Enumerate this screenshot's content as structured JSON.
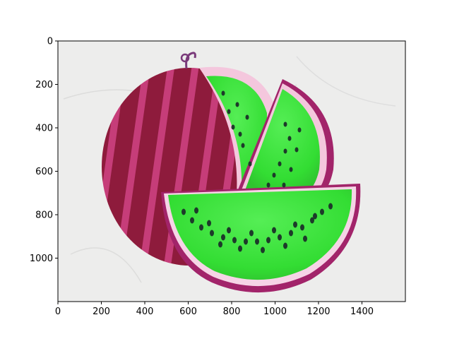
{
  "figure": {
    "image_description_icon": "watermelon-photo-icon",
    "axes": {
      "x_ticks": [
        "0",
        "200",
        "400",
        "600",
        "800",
        "1000",
        "1200",
        "1400"
      ],
      "y_ticks": [
        "0",
        "200",
        "400",
        "600",
        "800",
        "1000"
      ],
      "x_tick_values": [
        0,
        200,
        400,
        600,
        800,
        1000,
        1200,
        1400
      ],
      "y_tick_values": [
        0,
        200,
        400,
        600,
        800,
        1000
      ],
      "x_range": [
        0,
        1600
      ],
      "y_range": [
        1200,
        0
      ]
    },
    "colors": {
      "background": "#ededec",
      "rind_dark": "#8e1b3c",
      "rind_stripe": "#c63d79",
      "flesh_green": "#3ee63e",
      "flesh_edge": "#f4c7dd",
      "skin_outer": "#a2246a",
      "seed": "#1d3a2a"
    }
  }
}
